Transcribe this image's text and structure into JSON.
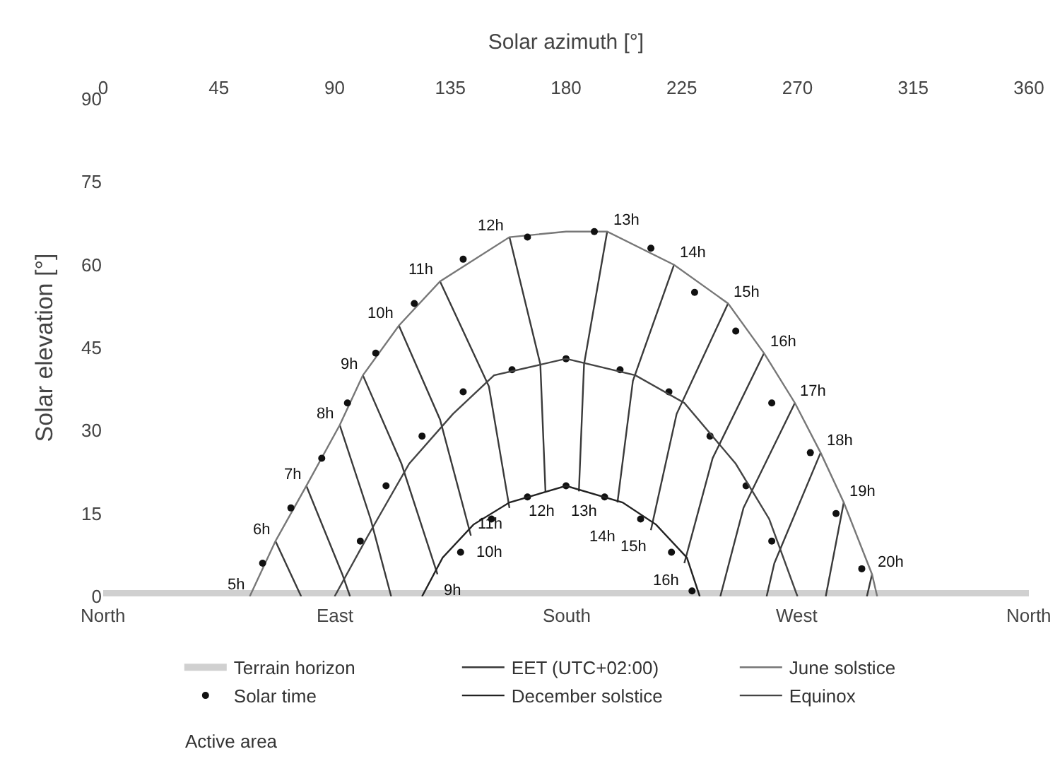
{
  "chart_data": {
    "type": "line",
    "xlabel": "Solar azimuth [°]",
    "ylabel": "Solar elevation [°]",
    "xlim": [
      0,
      360
    ],
    "xticks": [
      0,
      45,
      90,
      135,
      180,
      225,
      270,
      315,
      360
    ],
    "ylim": [
      0,
      90
    ],
    "yticks": [
      0,
      15,
      30,
      45,
      60,
      75,
      90
    ],
    "legend": "bottom",
    "series": [
      {
        "name": "Terrain horizon",
        "color": "#d0d0d0",
        "x": [
          0,
          360
        ],
        "values": [
          0.5,
          0.5
        ]
      },
      {
        "name": "EET (UTC+02:00)",
        "color": "#3a3a3a",
        "x": [
          67,
          77,
          null,
          79,
          93,
          96,
          null,
          92,
          104,
          112,
          null,
          101,
          116,
          130,
          null,
          115,
          131,
          143,
          null,
          131,
          150,
          158,
          null,
          158,
          170,
          172,
          null,
          196,
          187,
          185,
          null,
          222,
          206,
          200,
          null,
          243,
          223,
          213,
          null,
          257,
          237,
          226,
          null,
          269,
          249,
          240,
          null,
          279,
          261,
          258,
          null,
          288,
          281,
          null,
          299,
          297
        ],
        "values": [
          10,
          0,
          null,
          20,
          4,
          0,
          null,
          31,
          14,
          0,
          null,
          40,
          24,
          4,
          null,
          49,
          32,
          11,
          null,
          57,
          38,
          16,
          null,
          65,
          42,
          19,
          null,
          66,
          42,
          19,
          null,
          60,
          39,
          17,
          null,
          53,
          33,
          12,
          null,
          44,
          25,
          6,
          null,
          35,
          16,
          0,
          null,
          26,
          6,
          0,
          null,
          17,
          0,
          null,
          4,
          0
        ]
      },
      {
        "name": "June solstice",
        "color": "#777777",
        "x": [
          57,
          67,
          79,
          92,
          101,
          115,
          131,
          158,
          180,
          196,
          222,
          243,
          257,
          269,
          279,
          288,
          299,
          301
        ],
        "values": [
          0,
          10,
          20,
          31,
          40,
          49,
          57,
          65,
          66,
          66,
          60,
          53,
          44,
          35,
          26,
          17,
          4,
          0
        ]
      },
      {
        "name": "Solar time",
        "type": "scatter",
        "color": "#111111",
        "x": [
          62,
          73,
          85,
          95,
          106,
          121,
          140,
          165,
          191,
          213,
          230,
          246,
          260,
          275,
          285,
          295,
          100,
          110,
          124,
          140,
          159,
          180,
          201,
          220,
          236,
          250,
          260,
          139,
          151,
          165,
          180,
          195,
          209,
          221,
          229
        ],
        "values": [
          6,
          16,
          25,
          35,
          44,
          53,
          61,
          65,
          66,
          63,
          55,
          48,
          35,
          26,
          15,
          5,
          10,
          20,
          29,
          37,
          41,
          43,
          41,
          37,
          29,
          20,
          10,
          8,
          14,
          18,
          20,
          18,
          14,
          8,
          1
        ]
      },
      {
        "name": "December solstice",
        "color": "#222222",
        "x": [
          124,
          132,
          144,
          158,
          180,
          202,
          215,
          227,
          232
        ],
        "values": [
          0,
          7,
          13,
          17,
          20,
          17,
          13,
          7,
          0
        ]
      },
      {
        "name": "Equinox",
        "color": "#444444",
        "x": [
          90,
          103,
          119,
          136,
          152,
          180,
          207,
          226,
          246,
          259,
          270
        ],
        "values": [
          0,
          11,
          24,
          33,
          40,
          43,
          40,
          35,
          24,
          14,
          0
        ]
      }
    ],
    "annotations": [
      {
        "text": "5h",
        "x": 57,
        "y": 0
      },
      {
        "text": "6h",
        "x": 67,
        "y": 10
      },
      {
        "text": "7h",
        "x": 79,
        "y": 20
      },
      {
        "text": "8h",
        "x": 92,
        "y": 31
      },
      {
        "text": "9h",
        "x": 101,
        "y": 40
      },
      {
        "text": "10h",
        "x": 115,
        "y": 49
      },
      {
        "text": "11h",
        "x": 131,
        "y": 57
      },
      {
        "text": "12h",
        "x": 158,
        "y": 65
      },
      {
        "text": "13h",
        "x": 196,
        "y": 66
      },
      {
        "text": "14h",
        "x": 222,
        "y": 60
      },
      {
        "text": "15h",
        "x": 243,
        "y": 53
      },
      {
        "text": "16h",
        "x": 257,
        "y": 44
      },
      {
        "text": "17h",
        "x": 269,
        "y": 35
      },
      {
        "text": "18h",
        "x": 279,
        "y": 26
      },
      {
        "text": "19h",
        "x": 288,
        "y": 17
      },
      {
        "text": "20h",
        "x": 299,
        "y": 4
      },
      {
        "text": "9h",
        "x": 130,
        "y": 4
      },
      {
        "text": "10h",
        "x": 143,
        "y": 11
      },
      {
        "text": "11h",
        "x": 158,
        "y": 16
      },
      {
        "text": "12h",
        "x": 172,
        "y": 19
      },
      {
        "text": "13h",
        "x": 185,
        "y": 19
      },
      {
        "text": "14h",
        "x": 200,
        "y": 17
      },
      {
        "text": "15h",
        "x": 213,
        "y": 12
      },
      {
        "text": "16h",
        "x": 226,
        "y": 6
      },
      {
        "text": "North",
        "x": 0,
        "y": 0
      },
      {
        "text": "East",
        "x": 90,
        "y": 0
      },
      {
        "text": "South",
        "x": 180,
        "y": 0
      },
      {
        "text": "West",
        "x": 270,
        "y": 0
      },
      {
        "text": "North",
        "x": 360,
        "y": 0
      },
      "Active area"
    ]
  }
}
